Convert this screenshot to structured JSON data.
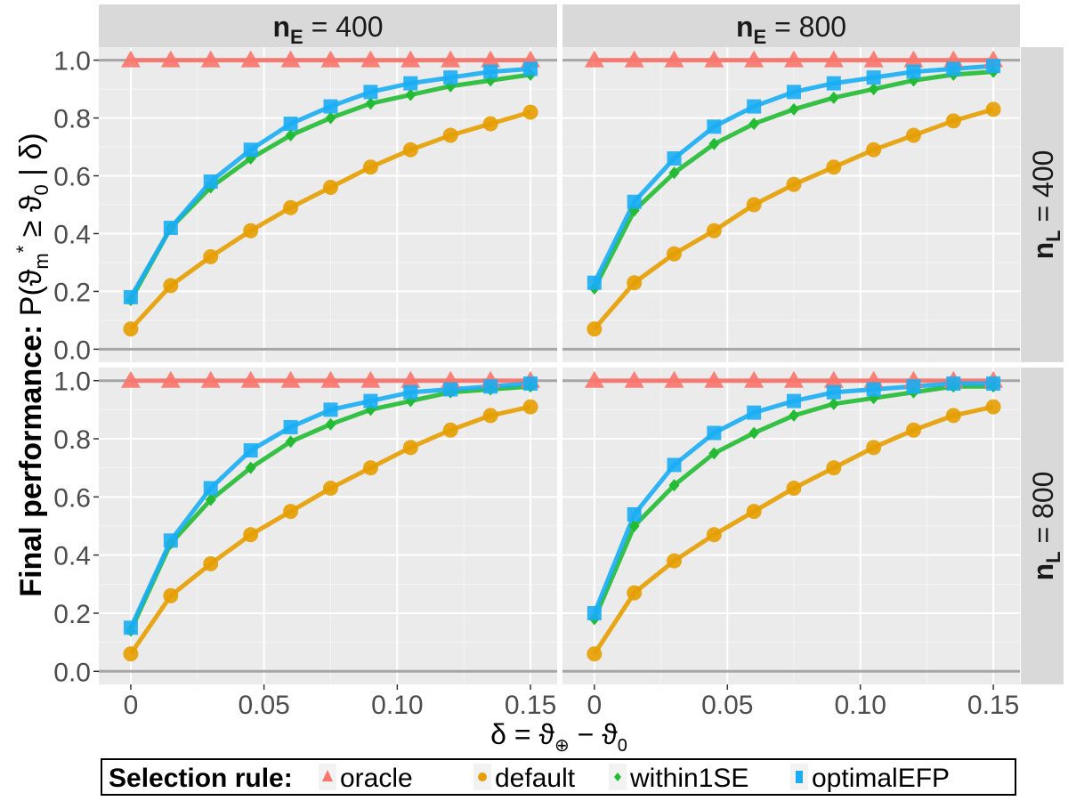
{
  "chart_data": {
    "type": "line",
    "facet_layout": "2x2 grid",
    "column_facets": [
      {
        "var": "n",
        "sub": "E",
        "value": "400"
      },
      {
        "var": "n",
        "sub": "E",
        "value": "800"
      }
    ],
    "row_facets": [
      {
        "var": "n",
        "sub": "L",
        "value": "400"
      },
      {
        "var": "n",
        "sub": "L",
        "value": "800"
      }
    ],
    "x": [
      0,
      0.015,
      0.03,
      0.045,
      0.06,
      0.075,
      0.09,
      0.105,
      0.12,
      0.135,
      0.15
    ],
    "xlim": [
      -0.012,
      0.16
    ],
    "ylim": [
      -0.045,
      1.045
    ],
    "x_ticks": [
      0,
      0.05,
      0.1,
      0.15
    ],
    "x_tick_labels": [
      "0",
      "0.05",
      "0.10",
      "0.15"
    ],
    "y_ticks": [
      0,
      0.2,
      0.4,
      0.6,
      0.8,
      1.0
    ],
    "y_tick_labels": [
      "0.0",
      "0.2",
      "0.4",
      "0.6",
      "0.8",
      "1.0"
    ],
    "reference_lines": [
      0,
      1
    ],
    "grid": true,
    "xlabel": "δ = ϑ⊕ − ϑ0",
    "xlabel_parts": {
      "lhs": "δ = ϑ",
      "sub1": "⊕",
      "mid": " − ϑ",
      "sub2": "0"
    },
    "ylabel": "Final performance: P(ϑm* ≥ ϑ0 | δ)",
    "ylabel_parts": {
      "bold": "Final performance: ",
      "p": "P(ϑ",
      "sub1": "m",
      "sup1": "*",
      "mid": " ≥ ϑ",
      "sub2": "0",
      "end": " | δ)"
    },
    "legend": {
      "title": "Selection rule:",
      "position": "bottom",
      "entries": [
        {
          "name": "oracle",
          "color": "#F8766D",
          "shape": "triangle"
        },
        {
          "name": "default",
          "color": "#E69F00",
          "shape": "circle"
        },
        {
          "name": "within1SE",
          "color": "#22BB33",
          "shape": "diamond"
        },
        {
          "name": "optimalEFP",
          "color": "#1AADF4",
          "shape": "square"
        }
      ]
    },
    "panels": [
      {
        "row": 0,
        "col": 0,
        "series": [
          {
            "name": "oracle",
            "values": [
              1,
              1,
              1,
              1,
              1,
              1,
              1,
              1,
              1,
              1,
              1
            ]
          },
          {
            "name": "default",
            "values": [
              0.07,
              0.22,
              0.32,
              0.41,
              0.49,
              0.56,
              0.63,
              0.69,
              0.74,
              0.78,
              0.82
            ]
          },
          {
            "name": "within1SE",
            "values": [
              0.17,
              0.42,
              0.56,
              0.66,
              0.74,
              0.8,
              0.85,
              0.88,
              0.91,
              0.93,
              0.95
            ]
          },
          {
            "name": "optimalEFP",
            "values": [
              0.18,
              0.42,
              0.58,
              0.69,
              0.78,
              0.84,
              0.89,
              0.92,
              0.94,
              0.96,
              0.97
            ]
          }
        ]
      },
      {
        "row": 0,
        "col": 1,
        "series": [
          {
            "name": "oracle",
            "values": [
              1,
              1,
              1,
              1,
              1,
              1,
              1,
              1,
              1,
              1,
              1
            ]
          },
          {
            "name": "default",
            "values": [
              0.07,
              0.23,
              0.33,
              0.41,
              0.5,
              0.57,
              0.63,
              0.69,
              0.74,
              0.79,
              0.83
            ]
          },
          {
            "name": "within1SE",
            "values": [
              0.21,
              0.48,
              0.61,
              0.71,
              0.78,
              0.83,
              0.87,
              0.9,
              0.93,
              0.95,
              0.96
            ]
          },
          {
            "name": "optimalEFP",
            "values": [
              0.23,
              0.51,
              0.66,
              0.77,
              0.84,
              0.89,
              0.92,
              0.94,
              0.96,
              0.97,
              0.98
            ]
          }
        ]
      },
      {
        "row": 1,
        "col": 0,
        "series": [
          {
            "name": "oracle",
            "values": [
              1,
              1,
              1,
              1,
              1,
              1,
              1,
              1,
              1,
              1,
              1
            ]
          },
          {
            "name": "default",
            "values": [
              0.06,
              0.26,
              0.37,
              0.47,
              0.55,
              0.63,
              0.7,
              0.77,
              0.83,
              0.88,
              0.91
            ]
          },
          {
            "name": "within1SE",
            "values": [
              0.14,
              0.44,
              0.59,
              0.7,
              0.79,
              0.85,
              0.9,
              0.93,
              0.96,
              0.97,
              0.98
            ]
          },
          {
            "name": "optimalEFP",
            "values": [
              0.15,
              0.45,
              0.63,
              0.76,
              0.84,
              0.9,
              0.93,
              0.96,
              0.97,
              0.98,
              0.99
            ]
          }
        ]
      },
      {
        "row": 1,
        "col": 1,
        "series": [
          {
            "name": "oracle",
            "values": [
              1,
              1,
              1,
              1,
              1,
              1,
              1,
              1,
              1,
              1,
              1
            ]
          },
          {
            "name": "default",
            "values": [
              0.06,
              0.27,
              0.38,
              0.47,
              0.55,
              0.63,
              0.7,
              0.77,
              0.83,
              0.88,
              0.91
            ]
          },
          {
            "name": "within1SE",
            "values": [
              0.18,
              0.5,
              0.64,
              0.75,
              0.82,
              0.88,
              0.92,
              0.94,
              0.96,
              0.98,
              0.98
            ]
          },
          {
            "name": "optimalEFP",
            "values": [
              0.2,
              0.54,
              0.71,
              0.82,
              0.89,
              0.93,
              0.96,
              0.97,
              0.98,
              0.99,
              0.99
            ]
          }
        ]
      }
    ]
  }
}
